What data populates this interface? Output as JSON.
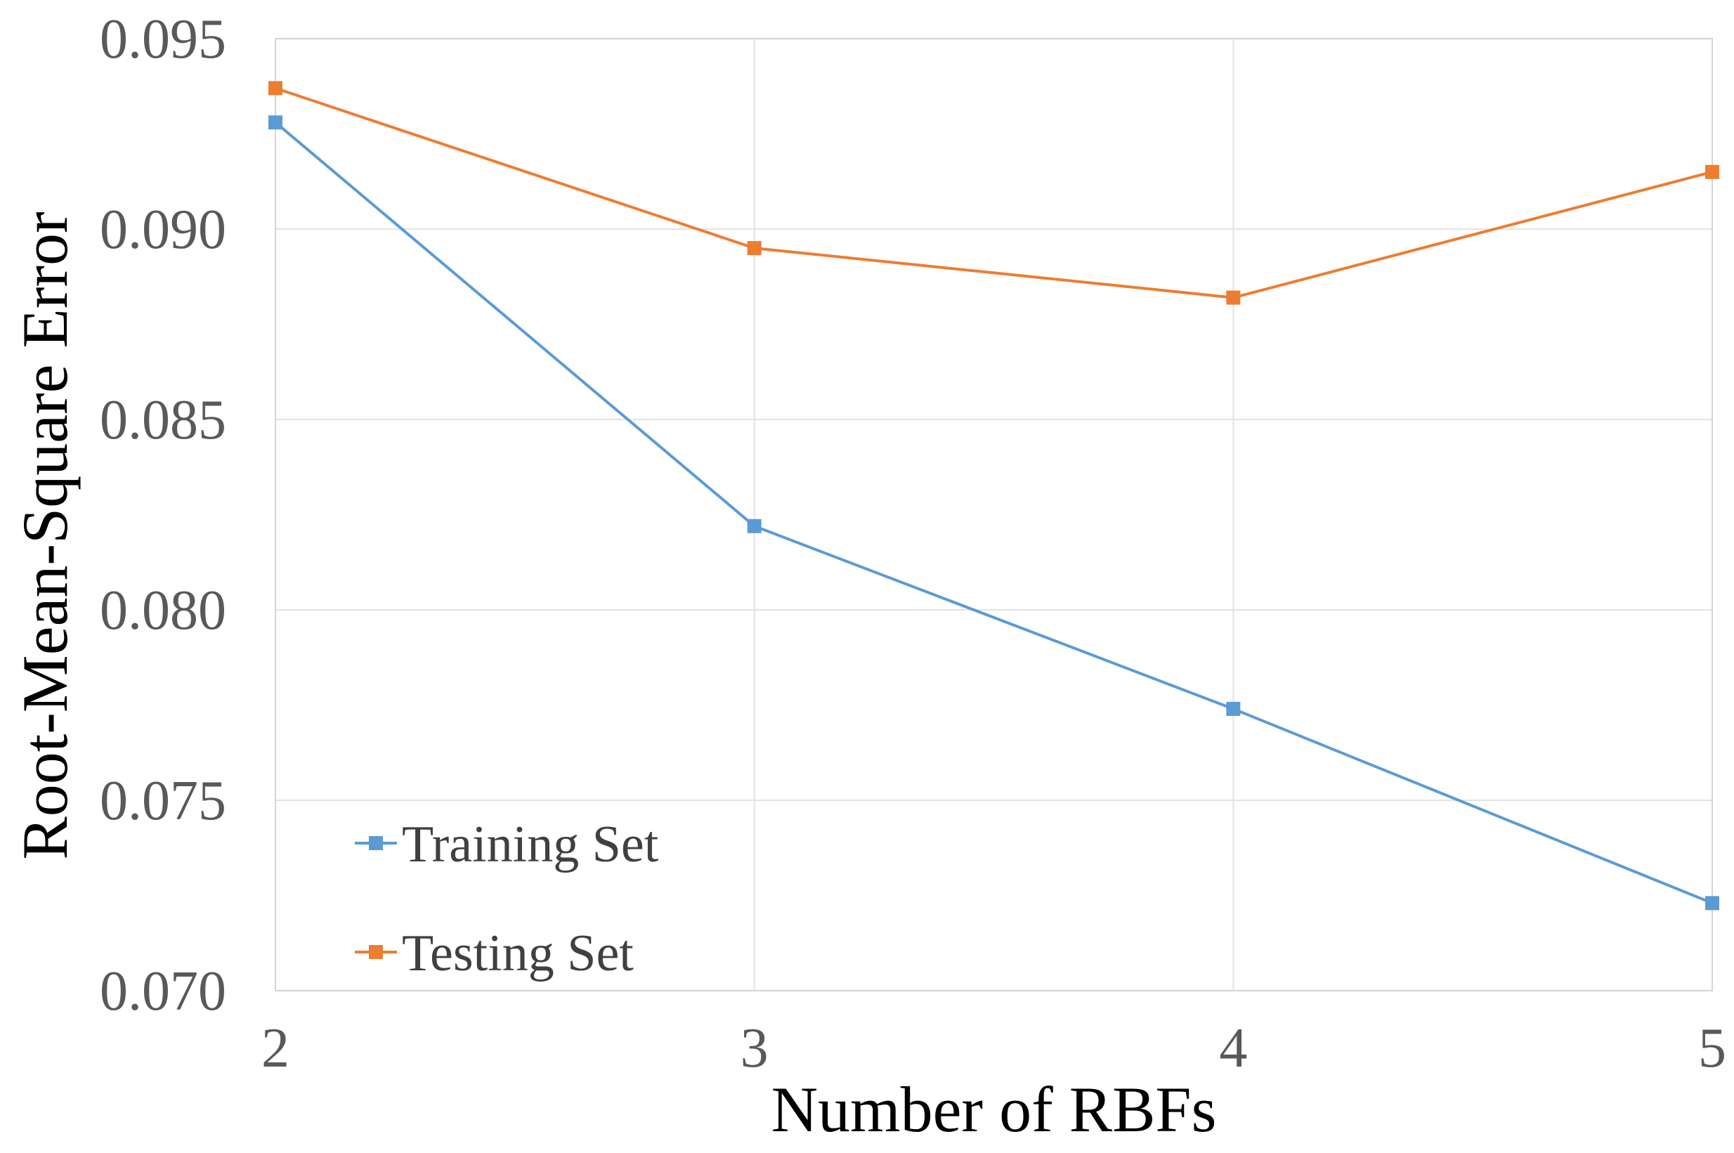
{
  "chart_data": {
    "type": "line",
    "title": "",
    "xlabel": "Number of RBFs",
    "ylabel": "Root-Mean-Square Error",
    "x": [
      2,
      3,
      4,
      5
    ],
    "xticks": [
      "2",
      "3",
      "4",
      "5"
    ],
    "yticks": [
      "0.070",
      "0.075",
      "0.080",
      "0.085",
      "0.090",
      "0.095"
    ],
    "ylim": [
      0.07,
      0.095
    ],
    "xlim": [
      2,
      5
    ],
    "grid": true,
    "legend_position": "bottom-left",
    "series": [
      {
        "name": "Training Set",
        "color": "#5b9bd5",
        "marker": "square",
        "values": [
          0.0928,
          0.0822,
          0.0774,
          0.0723
        ]
      },
      {
        "name": "Testing Set",
        "color": "#ed7d31",
        "marker": "square",
        "values": [
          0.0937,
          0.0895,
          0.0882,
          0.0915
        ]
      }
    ]
  }
}
